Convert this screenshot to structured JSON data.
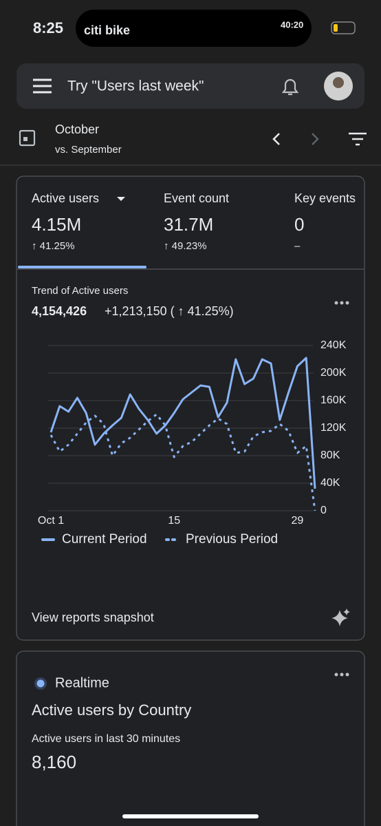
{
  "status": {
    "time": "8:25",
    "app": "citi bike",
    "timer": "40:20"
  },
  "search": {
    "placeholder": "Try \"Users last week\""
  },
  "date": {
    "period": "October",
    "comparison": "vs. September"
  },
  "metrics": [
    {
      "label": "Active users",
      "value": "4.15M",
      "change": "↑ 41.25%"
    },
    {
      "label": "Event count",
      "value": "31.7M",
      "change": "↑ 49.23%"
    },
    {
      "label": "Key events",
      "value": "0",
      "change": "–"
    }
  ],
  "trend": {
    "title": "Trend of Active users",
    "total": "4,154,426",
    "delta": "+1,213,150 ( ↑ 41.25%)",
    "chart": {
      "type": "line",
      "x": [
        1,
        2,
        3,
        4,
        5,
        6,
        7,
        8,
        9,
        10,
        11,
        12,
        13,
        14,
        15,
        16,
        17,
        18,
        19,
        20,
        21,
        22,
        23,
        24,
        25,
        26,
        27,
        28,
        29,
        30,
        31
      ],
      "xlim": [
        1,
        31
      ],
      "xticks": [
        {
          "value": 1,
          "label": "Oct 1"
        },
        15,
        29
      ],
      "ylim": [
        0,
        240000
      ],
      "yticks": [
        {
          "value": 0,
          "label": "0"
        },
        {
          "value": 40000,
          "label": "40K"
        },
        {
          "value": 80000,
          "label": "80K"
        },
        {
          "value": 120000,
          "label": "120K"
        },
        {
          "value": 160000,
          "label": "160K"
        },
        {
          "value": 200000,
          "label": "200K"
        },
        {
          "value": 240000,
          "label": "240K"
        }
      ],
      "grid": true,
      "series": [
        {
          "name": "Current Period",
          "color": "#8ab4f8",
          "style": "solid",
          "values": [
            114000,
            152000,
            144000,
            164000,
            142000,
            96000,
            112000,
            124000,
            135000,
            169000,
            148000,
            132000,
            112000,
            124000,
            142000,
            162000,
            172000,
            182000,
            180000,
            136000,
            157000,
            220000,
            184000,
            192000,
            220000,
            214000,
            132000,
            172000,
            210000,
            222000,
            32000
          ]
        },
        {
          "name": "Previous Period",
          "color": "#8ab4f8",
          "style": "dashed",
          "values": [
            110000,
            86000,
            96000,
            112000,
            128000,
            138000,
            126000,
            80000,
            98000,
            106000,
            118000,
            130000,
            140000,
            124000,
            78000,
            94000,
            100000,
            112000,
            124000,
            134000,
            126000,
            84000,
            86000,
            108000,
            114000,
            116000,
            126000,
            116000,
            84000,
            94000,
            0
          ]
        }
      ]
    },
    "link": "View reports snapshot"
  },
  "realtime": {
    "label": "Realtime",
    "title": "Active users by Country",
    "subtitle": "Active users in last 30 minutes",
    "value": "8,160"
  }
}
